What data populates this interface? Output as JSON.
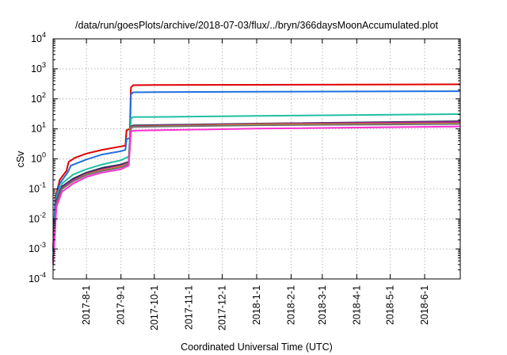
{
  "chart_data": {
    "type": "line",
    "title": "/data/run/goesPlots/archive/2018-07-03/flux/../bryn/366daysMoonAccumulated.plot",
    "xlabel": "Coordinated Universal Time (UTC)",
    "ylabel": "cSv",
    "y_scale": "log",
    "ylim": [
      0.0001,
      10000
    ],
    "x_range": [
      "2017-07-02",
      "2018-07-03"
    ],
    "grid": true,
    "legend": "none",
    "y_ticks": [
      {
        "base": "10",
        "exp": "-4",
        "value": 0.0001
      },
      {
        "base": "10",
        "exp": "-3",
        "value": 0.001
      },
      {
        "base": "10",
        "exp": "-2",
        "value": 0.01
      },
      {
        "base": "10",
        "exp": "-1",
        "value": 0.1
      },
      {
        "base": "10",
        "exp": "0",
        "value": 1
      },
      {
        "base": "10",
        "exp": "1",
        "value": 10
      },
      {
        "base": "10",
        "exp": "2",
        "value": 100
      },
      {
        "base": "10",
        "exp": "3",
        "value": 1000
      },
      {
        "base": "10",
        "exp": "4",
        "value": 10000
      }
    ],
    "x_ticks": [
      "2017-8-1",
      "2017-9-1",
      "2017-10-1",
      "2017-11-1",
      "2017-12-1",
      "2018-1-1",
      "2018-2-1",
      "2018-3-1",
      "2018-4-1",
      "2018-5-1",
      "2018-6-1"
    ],
    "x_tick_dates": [
      "2017-08-01",
      "2017-09-01",
      "2017-10-01",
      "2017-11-01",
      "2017-12-01",
      "2018-01-01",
      "2018-02-01",
      "2018-03-01",
      "2018-04-01",
      "2018-05-01",
      "2018-06-01"
    ],
    "series": [
      {
        "color": "#e00000",
        "points": [
          [
            "2017-07-02",
            0.001
          ],
          [
            "2017-07-04",
            0.05
          ],
          [
            "2017-07-08",
            0.2
          ],
          [
            "2017-07-14",
            0.4
          ],
          [
            "2017-07-16",
            0.8
          ],
          [
            "2017-07-22",
            1.1
          ],
          [
            "2017-08-01",
            1.5
          ],
          [
            "2017-08-15",
            2.0
          ],
          [
            "2017-09-01",
            2.6
          ],
          [
            "2017-09-05",
            2.8
          ],
          [
            "2017-09-06",
            9.0
          ],
          [
            "2017-09-09",
            10.0
          ],
          [
            "2017-09-10",
            240
          ],
          [
            "2017-09-12",
            285
          ],
          [
            "2017-10-01",
            290
          ],
          [
            "2018-01-01",
            295
          ],
          [
            "2018-07-03",
            305
          ]
        ]
      },
      {
        "color": "#1f6fe0",
        "points": [
          [
            "2017-07-02",
            0.0008
          ],
          [
            "2017-07-04",
            0.04
          ],
          [
            "2017-07-08",
            0.15
          ],
          [
            "2017-07-15",
            0.35
          ],
          [
            "2017-07-18",
            0.6
          ],
          [
            "2017-08-01",
            0.95
          ],
          [
            "2017-08-15",
            1.4
          ],
          [
            "2017-09-01",
            1.8
          ],
          [
            "2017-09-05",
            2.0
          ],
          [
            "2017-09-06",
            4.5
          ],
          [
            "2017-09-09",
            5.0
          ],
          [
            "2017-09-10",
            140
          ],
          [
            "2017-09-12",
            165
          ],
          [
            "2017-10-01",
            168
          ],
          [
            "2018-01-01",
            172
          ],
          [
            "2018-07-03",
            180
          ]
        ]
      },
      {
        "color": "#20c0a0",
        "points": [
          [
            "2017-07-02",
            0.0005
          ],
          [
            "2017-07-05",
            0.05
          ],
          [
            "2017-07-10",
            0.15
          ],
          [
            "2017-07-20",
            0.3
          ],
          [
            "2017-08-01",
            0.45
          ],
          [
            "2017-08-15",
            0.65
          ],
          [
            "2017-09-01",
            0.9
          ],
          [
            "2017-09-08",
            1.2
          ],
          [
            "2017-09-10",
            22
          ],
          [
            "2017-09-12",
            25
          ],
          [
            "2017-10-01",
            25
          ],
          [
            "2018-01-01",
            27
          ],
          [
            "2018-07-03",
            31
          ]
        ]
      },
      {
        "color": "#1a3050",
        "points": [
          [
            "2017-07-02",
            0.0004
          ],
          [
            "2017-07-05",
            0.04
          ],
          [
            "2017-07-10",
            0.12
          ],
          [
            "2017-07-20",
            0.22
          ],
          [
            "2017-08-01",
            0.35
          ],
          [
            "2017-08-15",
            0.5
          ],
          [
            "2017-09-01",
            0.65
          ],
          [
            "2017-09-08",
            0.8
          ],
          [
            "2017-09-10",
            12
          ],
          [
            "2017-09-12",
            13
          ],
          [
            "2017-10-01",
            13.3
          ],
          [
            "2018-01-01",
            15
          ],
          [
            "2018-07-03",
            18
          ]
        ]
      },
      {
        "color": "#b02090",
        "points": [
          [
            "2017-07-02",
            0.0004
          ],
          [
            "2017-07-05",
            0.035
          ],
          [
            "2017-07-10",
            0.11
          ],
          [
            "2017-07-20",
            0.2
          ],
          [
            "2017-08-01",
            0.32
          ],
          [
            "2017-08-15",
            0.45
          ],
          [
            "2017-09-01",
            0.6
          ],
          [
            "2017-09-08",
            0.75
          ],
          [
            "2017-09-10",
            11.5
          ],
          [
            "2017-09-12",
            12.3
          ],
          [
            "2017-10-01",
            12.8
          ],
          [
            "2018-01-01",
            14.5
          ],
          [
            "2018-07-03",
            17
          ]
        ]
      },
      {
        "color": "#e8a000",
        "points": [
          [
            "2017-07-02",
            0.0004
          ],
          [
            "2017-07-05",
            0.03
          ],
          [
            "2017-07-10",
            0.1
          ],
          [
            "2017-07-20",
            0.18
          ],
          [
            "2017-08-01",
            0.3
          ],
          [
            "2017-08-15",
            0.42
          ],
          [
            "2017-09-01",
            0.55
          ],
          [
            "2017-09-08",
            0.7
          ],
          [
            "2017-09-10",
            11
          ],
          [
            "2017-09-12",
            11.8
          ],
          [
            "2017-10-01",
            12.2
          ],
          [
            "2018-01-01",
            13.8
          ],
          [
            "2018-07-03",
            15
          ]
        ]
      },
      {
        "color": "#707070",
        "points": [
          [
            "2017-07-02",
            0.0004
          ],
          [
            "2017-07-05",
            0.03
          ],
          [
            "2017-07-10",
            0.1
          ],
          [
            "2017-07-20",
            0.18
          ],
          [
            "2017-08-01",
            0.29
          ],
          [
            "2017-08-15",
            0.4
          ],
          [
            "2017-09-01",
            0.52
          ],
          [
            "2017-09-08",
            0.68
          ],
          [
            "2017-09-10",
            10.8
          ],
          [
            "2017-09-12",
            11.5
          ],
          [
            "2017-10-01",
            11.9
          ],
          [
            "2018-01-01",
            13.2
          ],
          [
            "2018-07-03",
            14.5
          ]
        ]
      },
      {
        "color": "#ff30d0",
        "points": [
          [
            "2017-07-02",
            0.0003
          ],
          [
            "2017-07-05",
            0.025
          ],
          [
            "2017-07-10",
            0.08
          ],
          [
            "2017-07-20",
            0.15
          ],
          [
            "2017-08-01",
            0.25
          ],
          [
            "2017-08-15",
            0.35
          ],
          [
            "2017-09-01",
            0.45
          ],
          [
            "2017-09-08",
            0.6
          ],
          [
            "2017-09-10",
            8
          ],
          [
            "2017-09-12",
            8.7
          ],
          [
            "2017-10-01",
            9.0
          ],
          [
            "2018-01-01",
            10.2
          ],
          [
            "2018-07-03",
            12
          ]
        ]
      }
    ]
  }
}
